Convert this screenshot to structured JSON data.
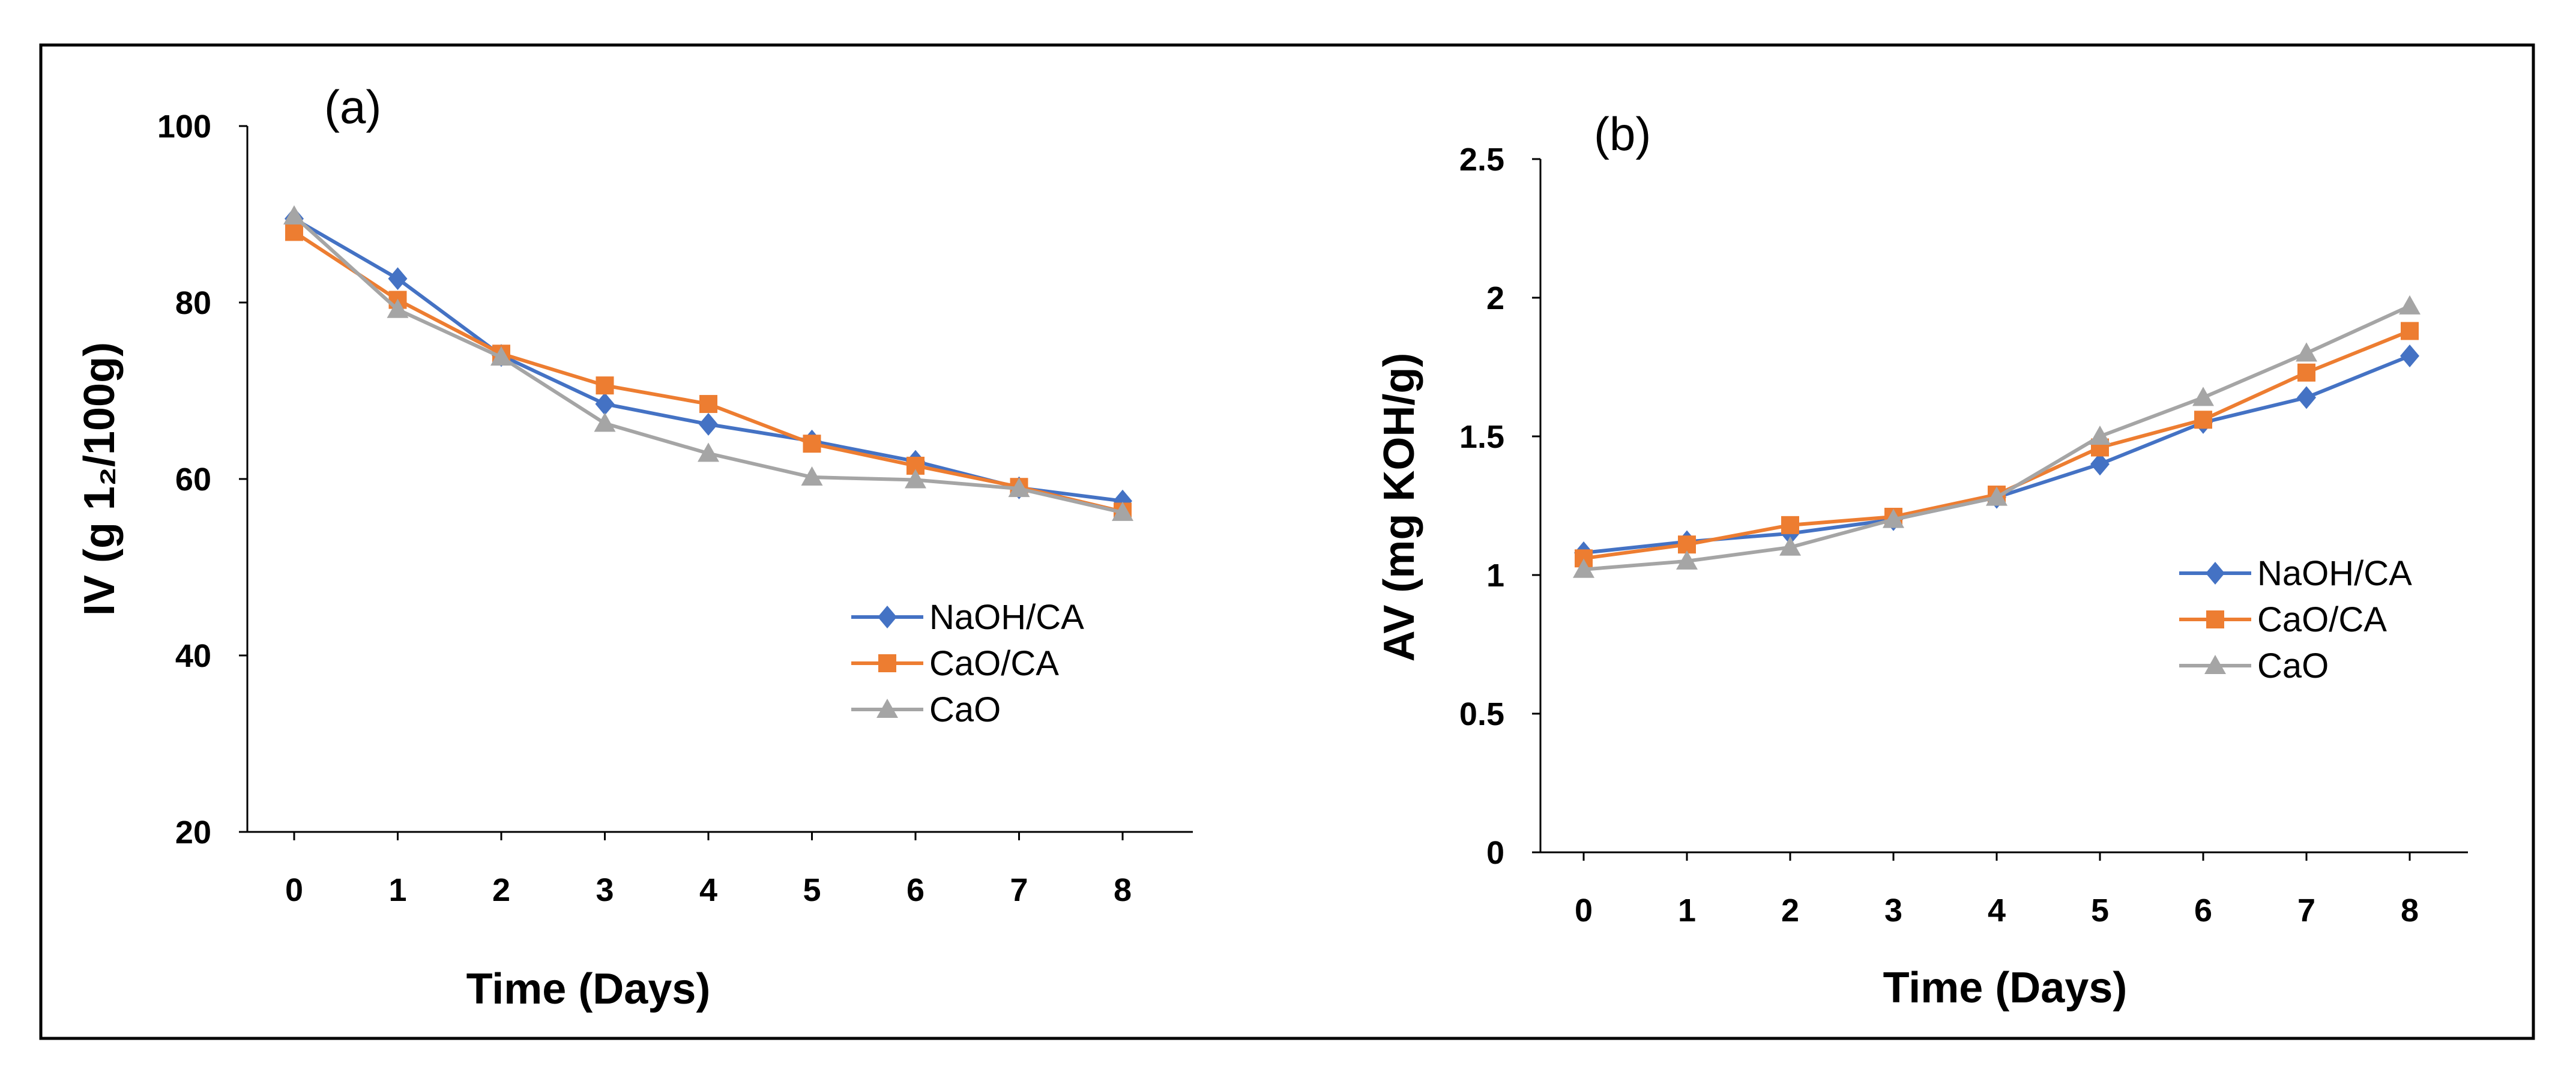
{
  "chart_data": [
    {
      "type": "line",
      "panel_label": "(a)",
      "xlabel": "Time (Days)",
      "ylabel": "IV (g 1₂/100g)",
      "categories": [
        "0",
        "1",
        "2",
        "3",
        "4",
        "5",
        "6",
        "7",
        "8"
      ],
      "x": [
        0,
        1,
        2,
        3,
        4,
        5,
        6,
        7,
        8
      ],
      "ylim": [
        20,
        100
      ],
      "yticks": [
        20,
        40,
        60,
        80,
        100
      ],
      "grid": false,
      "legend_position": "right",
      "series": [
        {
          "name": "NaOH/CA",
          "color": "#4472C4",
          "marker": "diamond",
          "values": [
            89.5,
            82.7,
            74.0,
            68.5,
            66.2,
            64.3,
            62.0,
            59.0,
            57.5
          ]
        },
        {
          "name": "CaO/CA",
          "color": "#ED7D31",
          "marker": "square",
          "values": [
            88.0,
            80.3,
            74.2,
            70.6,
            68.5,
            64.0,
            61.5,
            59.1,
            56.3
          ]
        },
        {
          "name": "CaO",
          "color": "#A5A5A5",
          "marker": "triangle",
          "values": [
            89.8,
            79.2,
            73.8,
            66.3,
            62.9,
            60.2,
            59.9,
            58.9,
            56.2
          ]
        }
      ]
    },
    {
      "type": "line",
      "panel_label": "(b)",
      "xlabel": "Time (Days)",
      "ylabel": "AV (mg KOH/g)",
      "categories": [
        "0",
        "1",
        "2",
        "3",
        "4",
        "5",
        "6",
        "7",
        "8"
      ],
      "x": [
        0,
        1,
        2,
        3,
        4,
        5,
        6,
        7,
        8
      ],
      "ylim": [
        0,
        2.5
      ],
      "yticks": [
        0,
        0.5,
        1,
        1.5,
        2,
        2.5
      ],
      "grid": false,
      "legend_position": "right",
      "series": [
        {
          "name": "NaOH/CA",
          "color": "#4472C4",
          "marker": "diamond",
          "values": [
            1.08,
            1.12,
            1.15,
            1.2,
            1.28,
            1.4,
            1.55,
            1.64,
            1.79
          ]
        },
        {
          "name": "CaO/CA",
          "color": "#ED7D31",
          "marker": "square",
          "values": [
            1.06,
            1.11,
            1.18,
            1.21,
            1.29,
            1.46,
            1.56,
            1.73,
            1.88
          ]
        },
        {
          "name": "CaO",
          "color": "#A5A5A5",
          "marker": "triangle",
          "values": [
            1.02,
            1.05,
            1.1,
            1.2,
            1.28,
            1.5,
            1.64,
            1.8,
            1.97
          ]
        }
      ]
    }
  ]
}
